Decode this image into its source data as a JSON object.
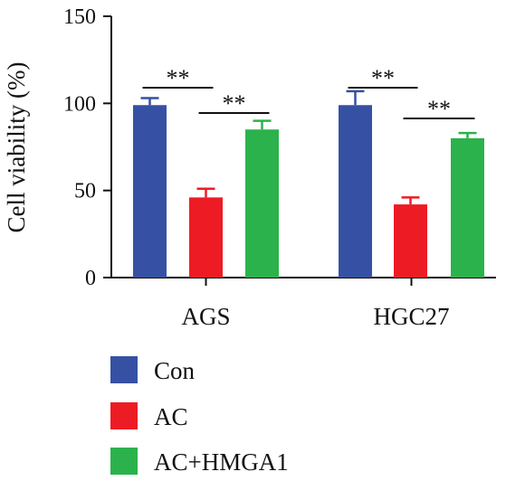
{
  "chart_data": {
    "type": "bar",
    "ylabel": "Cell viability (%)",
    "ylim": [
      0,
      150
    ],
    "yticks": [
      0,
      50,
      100,
      150
    ],
    "categories": [
      "AGS",
      "HGC27"
    ],
    "series": [
      {
        "name": "Con",
        "color": "#3651a3",
        "values": [
          99,
          99
        ],
        "errors": [
          4,
          8
        ]
      },
      {
        "name": "AC",
        "color": "#ed1c24",
        "values": [
          46,
          42
        ],
        "errors": [
          5,
          4
        ]
      },
      {
        "name": "AC+HMGA1",
        "color": "#2bb24c",
        "values": [
          85,
          80
        ],
        "errors": [
          5,
          3
        ]
      }
    ],
    "annotations": [
      {
        "category": "AGS",
        "from": "Con",
        "to": "AC",
        "text": "**"
      },
      {
        "category": "AGS",
        "from": "AC",
        "to": "AC+HMGA1",
        "text": "**"
      },
      {
        "category": "HGC27",
        "from": "Con",
        "to": "AC",
        "text": "**"
      },
      {
        "category": "HGC27",
        "from": "AC",
        "to": "AC+HMGA1",
        "text": "**"
      }
    ],
    "legend_position": "bottom-left",
    "grid": false
  }
}
